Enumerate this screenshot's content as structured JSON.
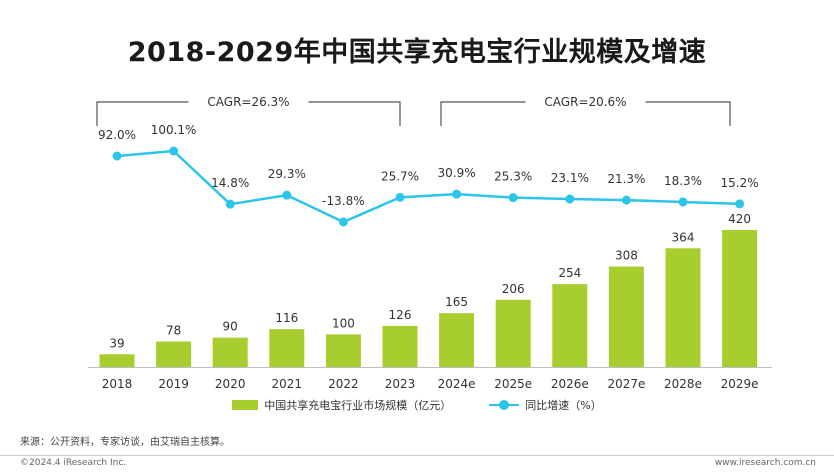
{
  "title": "2018-2029年中国共享充电宝行业规模及增速",
  "chart_data": {
    "type": "bar",
    "categories": [
      "2018",
      "2019",
      "2020",
      "2021",
      "2022",
      "2023",
      "2024e",
      "2025e",
      "2026e",
      "2027e",
      "2028e",
      "2029e"
    ],
    "series": [
      {
        "name": "中国共享充电宝行业市场规模（亿元）",
        "type": "bar",
        "values": [
          39,
          78,
          90,
          116,
          100,
          126,
          165,
          206,
          254,
          308,
          364,
          420
        ],
        "color": "#a8cd2e"
      },
      {
        "name": "同比增速（%）",
        "type": "line",
        "values": [
          92.0,
          100.1,
          14.8,
          29.3,
          -13.8,
          25.7,
          30.9,
          25.3,
          23.1,
          21.3,
          18.3,
          15.2
        ],
        "labels": [
          "92.0%",
          "100.1%",
          "14.8%",
          "29.3%",
          "-13.8%",
          "25.7%",
          "30.9%",
          "25.3%",
          "23.1%",
          "21.3%",
          "18.3%",
          "15.2%"
        ],
        "color": "#2cc5ea"
      }
    ],
    "annotations": [
      {
        "text": "CAGR=26.3%",
        "from": "2018",
        "to": "2023"
      },
      {
        "text": "CAGR=20.6%",
        "from": "2024e",
        "to": "2029e"
      }
    ],
    "legend_position": "bottom",
    "grid": false
  },
  "source": "来源：公开资料，专家访谈，由艾瑞自主核算。",
  "copyright": "©2024.4 iResearch Inc.",
  "website": "www.iresearch.com.cn"
}
